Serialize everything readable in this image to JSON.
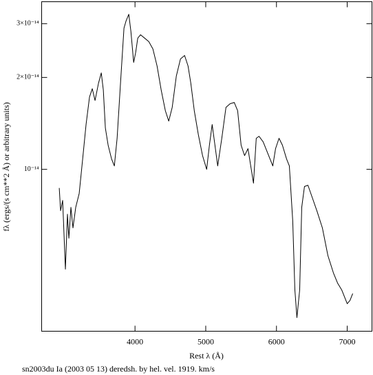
{
  "chart_data": {
    "type": "line",
    "caption": "sn2003du Ia (2003 05 13) deredsh. by hel. vel.  1919. km/s",
    "x_label": "Rest λ (Å)",
    "y_label": "fλ (ergs/(s cm**2 Å) or arbitrary units)",
    "log_y": true,
    "color": "#000000",
    "xlim": [
      2680,
      7350
    ],
    "xticks": [
      4000,
      5000,
      6000,
      7000
    ],
    "ylim": [
      2.95e-15,
      3.54e-14
    ],
    "yticks": [
      {
        "value": 1e-14,
        "label": "10⁻¹⁴"
      },
      {
        "value": 2e-14,
        "label": "2×10⁻¹⁴"
      },
      {
        "value": 3e-14,
        "label": "3×10⁻¹⁴"
      }
    ],
    "x": [
      2929,
      2948,
      2977,
      3016,
      3045,
      3065,
      3094,
      3123,
      3162,
      3211,
      3260,
      3308,
      3357,
      3396,
      3435,
      3484,
      3523,
      3552,
      3581,
      3620,
      3669,
      3708,
      3747,
      3795,
      3844,
      3873,
      3912,
      3942,
      3981,
      4010,
      4039,
      4078,
      4136,
      4195,
      4253,
      4312,
      4370,
      4429,
      4477,
      4526,
      4584,
      4643,
      4701,
      4750,
      4789,
      4838,
      4896,
      4955,
      5013,
      5052,
      5091,
      5130,
      5169,
      5227,
      5286,
      5344,
      5403,
      5451,
      5500,
      5549,
      5597,
      5636,
      5675,
      5714,
      5753,
      5812,
      5890,
      5948,
      5987,
      6036,
      6084,
      6143,
      6182,
      6230,
      6260,
      6289,
      6328,
      6357,
      6396,
      6445,
      6503,
      6571,
      6649,
      6727,
      6805,
      6864,
      6922,
      7000,
      7039,
      7078
    ],
    "values": [
      8.69e-15,
      7.32e-15,
      7.91e-15,
      4.71e-15,
      7.13e-15,
      5.95e-15,
      7.51e-15,
      6.43e-15,
      7.51e-15,
      8.34e-15,
      1.081e-14,
      1.402e-14,
      1.726e-14,
      1.837e-14,
      1.681e-14,
      1.915e-14,
      2.07e-14,
      1.82e-14,
      1.366e-14,
      1.2e-14,
      1.081e-14,
      1.026e-14,
      1.264e-14,
      1.915e-14,
      2.9e-14,
      3.06e-14,
      3.22e-14,
      2.83e-14,
      2.24e-14,
      2.42e-14,
      2.69e-14,
      2.76e-14,
      2.69e-14,
      2.62e-14,
      2.48e-14,
      2.18e-14,
      1.82e-14,
      1.556e-14,
      1.439e-14,
      1.596e-14,
      2.02e-14,
      2.3e-14,
      2.36e-14,
      2.18e-14,
      1.915e-14,
      1.556e-14,
      1.297e-14,
      1.109e-14,
      1e-14,
      1.2e-14,
      1.402e-14,
      1.2e-14,
      1.026e-14,
      1.264e-14,
      1.596e-14,
      1.64e-14,
      1.656e-14,
      1.556e-14,
      1.2e-14,
      1.109e-14,
      1.169e-14,
      1.026e-14,
      9.01e-15,
      1.264e-14,
      1.283e-14,
      1.23e-14,
      1.109e-14,
      1.026e-14,
      1.169e-14,
      1.264e-14,
      1.2e-14,
      1.081e-14,
      1.026e-14,
      6.77e-15,
      4.03e-15,
      3.27e-15,
      4.03e-15,
      7.51e-15,
      8.79e-15,
      8.87e-15,
      8.12e-15,
      7.32e-15,
      6.43e-15,
      5.22e-15,
      4.58e-15,
      4.24e-15,
      4.03e-15,
      3.63e-15,
      3.72e-15,
      3.92e-15
    ]
  }
}
